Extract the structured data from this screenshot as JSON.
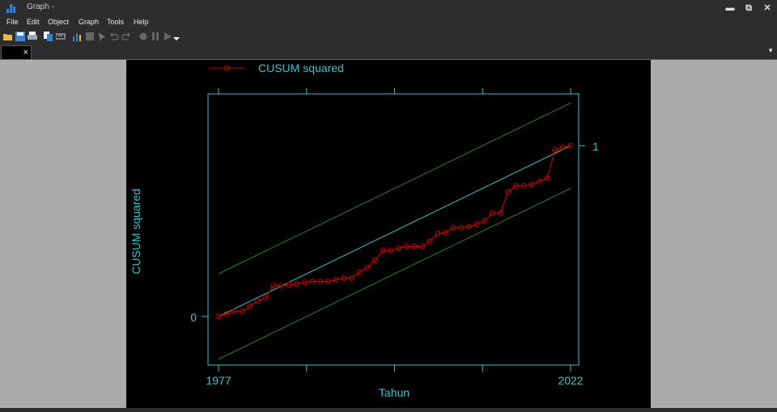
{
  "window": {
    "title": "Graph -",
    "minimize_glyph": "▬",
    "restore_glyph": "⧉",
    "close_glyph": "✕"
  },
  "menu": [
    "File",
    "Edit",
    "Object",
    "Graph",
    "Tools",
    "Help"
  ],
  "toolbar_icons": [
    "open-folder-icon",
    "save-icon",
    "print-icon",
    "copy-icon",
    "rename-icon",
    "graph-editor-icon",
    "stop-icon",
    "pointer-icon",
    "undo-icon",
    "redo-icon",
    "record-icon",
    "pause-icon",
    "play-icon",
    "play-dropdown-icon"
  ],
  "tab": {
    "close_glyph": "×",
    "dropdown_glyph": "▼"
  },
  "colors": {
    "background": "#000000",
    "axis": "#3fc1c9",
    "series": "#c00000",
    "reference": "#3fc1c9",
    "bounds": "#2e7d1e"
  },
  "chart_data": {
    "type": "line",
    "legend": [
      "CUSUM squared"
    ],
    "legend_position": "top",
    "xlabel": "Tahun",
    "ylabel": "CUSUM squared",
    "x_ticks": [
      "1977",
      "2022"
    ],
    "y_ticks": [
      "0",
      "1"
    ],
    "xlim": [
      1977,
      2022
    ],
    "ylim": [
      -0.25,
      1.3
    ],
    "x_start": 1977,
    "x_end": 2022,
    "series": [
      {
        "name": "CUSUM squared",
        "x": [
          1977,
          1978,
          1979,
          1980,
          1981,
          1982,
          1983,
          1984,
          1985,
          1986,
          1987,
          1988,
          1989,
          1990,
          1991,
          1992,
          1993,
          1994,
          1995,
          1996,
          1997,
          1998,
          1999,
          2000,
          2001,
          2002,
          2003,
          2004,
          2005,
          2006,
          2007,
          2008,
          2009,
          2010,
          2011,
          2012,
          2013,
          2014,
          2015,
          2016,
          2017,
          2018,
          2019,
          2020,
          2021,
          2022
        ],
        "y": [
          0.0,
          0.015,
          0.03,
          0.03,
          0.06,
          0.09,
          0.11,
          0.18,
          0.18,
          0.185,
          0.19,
          0.2,
          0.205,
          0.205,
          0.205,
          0.215,
          0.225,
          0.225,
          0.26,
          0.285,
          0.33,
          0.385,
          0.385,
          0.4,
          0.41,
          0.41,
          0.41,
          0.44,
          0.485,
          0.49,
          0.52,
          0.52,
          0.525,
          0.54,
          0.56,
          0.605,
          0.605,
          0.73,
          0.765,
          0.765,
          0.77,
          0.79,
          0.81,
          0.975,
          0.99,
          1.0
        ]
      },
      {
        "name": "",
        "x": [
          1977,
          2022
        ],
        "y": [
          0.0,
          1.0
        ]
      },
      {
        "name": "",
        "x": [
          1977,
          2022
        ],
        "y": [
          0.25,
          1.25
        ]
      },
      {
        "name": "",
        "x": [
          1977,
          2022
        ],
        "y": [
          -0.25,
          0.75
        ]
      }
    ]
  }
}
